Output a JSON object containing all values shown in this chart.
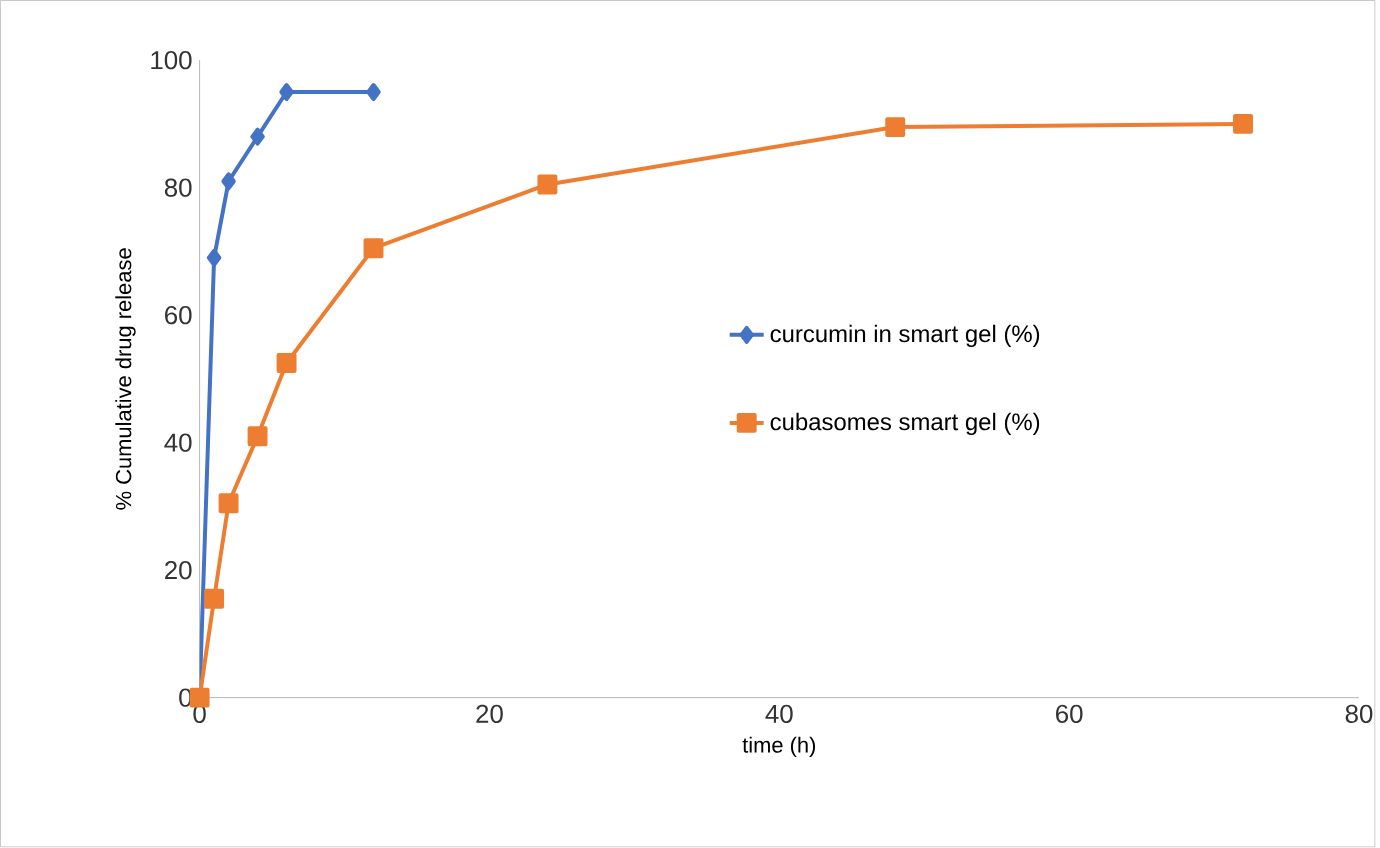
{
  "chart_data": {
    "type": "line",
    "xlabel": "time (h)",
    "ylabel": "% Cumulative drug release",
    "xlim": [
      0,
      80
    ],
    "xticks": [
      0,
      20,
      40,
      60,
      80
    ],
    "ylim": [
      0,
      100
    ],
    "yticks": [
      0,
      20,
      40,
      60,
      80,
      100
    ],
    "legend": "right",
    "grid": false,
    "series": [
      {
        "name": "curcumin in smart gel (%)",
        "color": "#4472c4",
        "marker": "diamond",
        "x": [
          0,
          1,
          2,
          4,
          6,
          12
        ],
        "values": [
          0,
          69,
          81,
          88,
          95,
          95
        ]
      },
      {
        "name": "cubasomes smart gel (%)",
        "color": "#ed7d31",
        "marker": "square",
        "x": [
          0,
          1,
          2,
          4,
          6,
          12,
          24,
          48,
          72
        ],
        "values": [
          0,
          15.5,
          30.5,
          41,
          52.5,
          70.5,
          80.5,
          89.5,
          90
        ]
      }
    ]
  }
}
